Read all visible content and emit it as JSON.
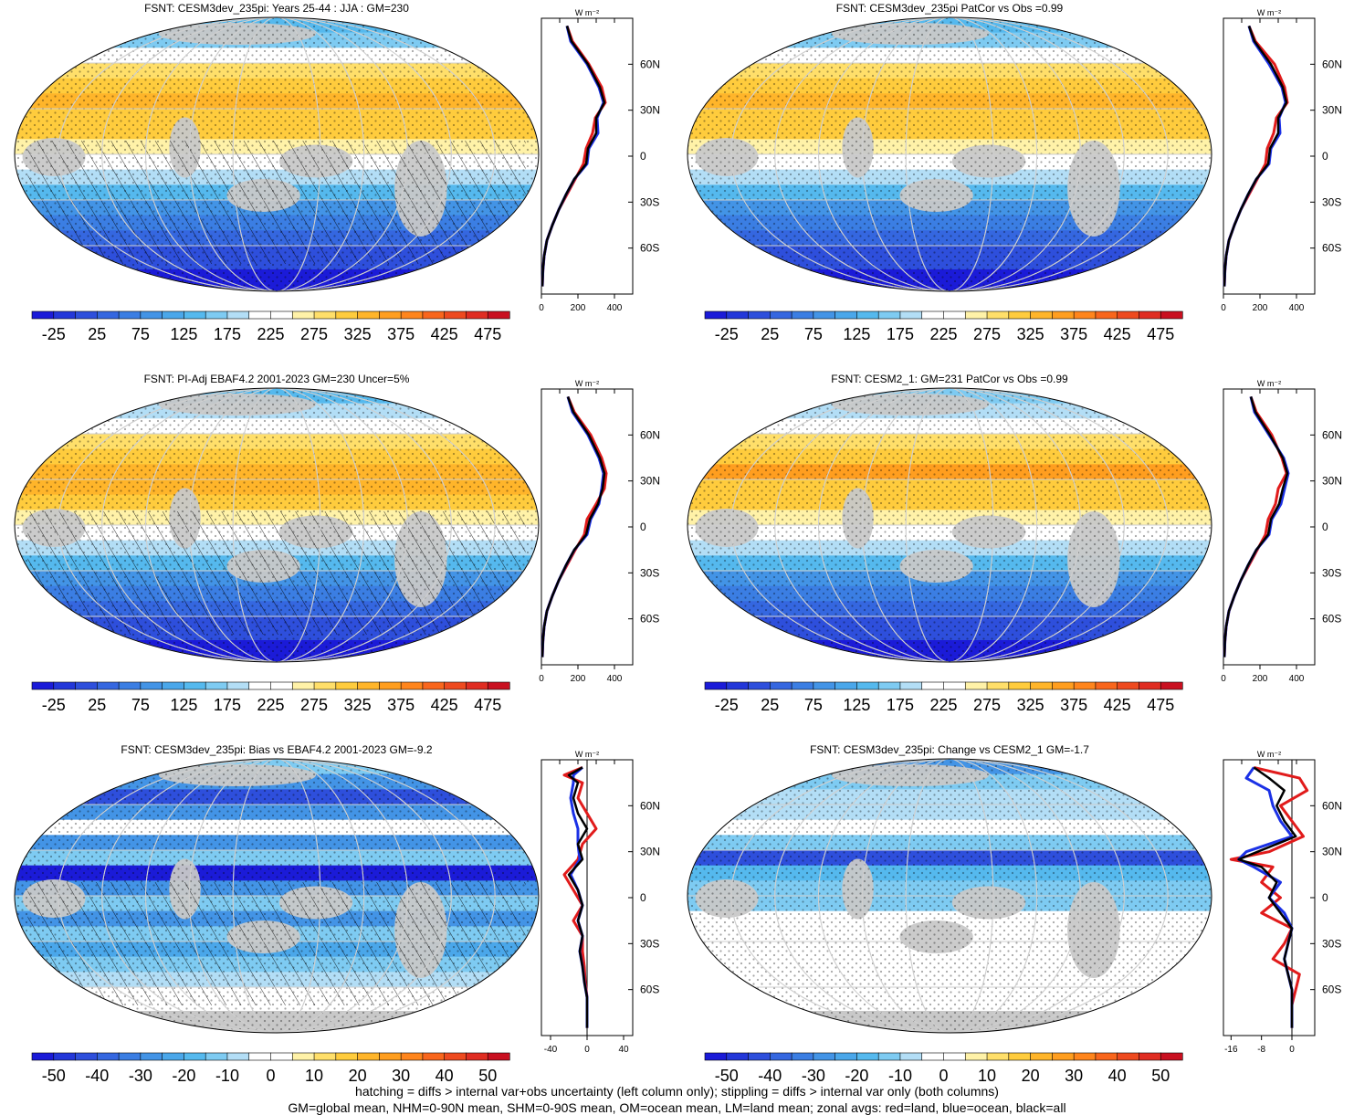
{
  "footer": {
    "line1": "hatching = diffs > internal var+obs uncertainty (left column only); stippling = diffs > internal var only (both columns)",
    "line2": "GM=global mean, NHM=0-90N mean, SHM=0-90S mean, OM=ocean mean, LM=land mean; zonal avgs: red=land, blue=ocean, black=all"
  },
  "lat_ticks": [
    "60N",
    "30N",
    "0",
    "30S",
    "60S"
  ],
  "unit_label": "W m⁻²",
  "colors": {
    "land": "#e11b1b",
    "ocean": "#1b31e6",
    "all": "#000000",
    "mask": "#c8c8c8"
  },
  "chart_data": [
    {
      "type": "heatmap",
      "title": "FSNT: CESM3dev_235pi: Years 25-44 : JJA : GM=230",
      "colorbar": {
        "ticks": [
          -25,
          25,
          75,
          125,
          175,
          225,
          275,
          325,
          375,
          425,
          475
        ],
        "vmin": -50,
        "vmax": 500,
        "levels": 22,
        "scheme": "abs"
      },
      "zonal": {
        "xticks": [
          0,
          200,
          400
        ],
        "xlim": [
          0,
          500
        ],
        "lat": [
          85,
          75,
          60,
          45,
          35,
          25,
          15,
          5,
          -5,
          -15,
          -25,
          -35,
          -45,
          -55,
          -65,
          -75,
          -85
        ],
        "all": [
          140,
          165,
          255,
          320,
          345,
          300,
          300,
          255,
          245,
          180,
          135,
          95,
          60,
          30,
          15,
          8,
          5
        ],
        "land": [
          140,
          170,
          260,
          330,
          350,
          295,
          280,
          245,
          230,
          185,
          140,
          95,
          60,
          30,
          15,
          8,
          5
        ],
        "ocean": [
          140,
          160,
          250,
          315,
          340,
          305,
          310,
          260,
          250,
          180,
          135,
          95,
          60,
          30,
          15,
          8,
          5
        ]
      }
    },
    {
      "type": "heatmap",
      "title": "FSNT: CESM3dev_235pi PatCor vs Obs =0.99",
      "colorbar": {
        "ticks": [
          -25,
          25,
          75,
          125,
          175,
          225,
          275,
          325,
          375,
          425,
          475
        ],
        "vmin": -50,
        "vmax": 500,
        "levels": 22,
        "scheme": "abs"
      },
      "zonal": {
        "xticks": [
          0,
          200,
          400
        ],
        "xlim": [
          0,
          500
        ],
        "lat": [
          85,
          75,
          60,
          45,
          35,
          25,
          15,
          5,
          -5,
          -15,
          -25,
          -35,
          -45,
          -55,
          -65,
          -75,
          -85
        ],
        "all": [
          140,
          170,
          260,
          325,
          345,
          300,
          300,
          255,
          245,
          180,
          135,
          95,
          60,
          30,
          15,
          8,
          5
        ],
        "land": [
          140,
          175,
          280,
          335,
          350,
          290,
          275,
          240,
          230,
          185,
          140,
          95,
          60,
          30,
          15,
          8,
          5
        ],
        "ocean": [
          140,
          165,
          250,
          320,
          340,
          305,
          310,
          260,
          250,
          180,
          135,
          95,
          60,
          30,
          15,
          8,
          5
        ]
      }
    },
    {
      "type": "heatmap",
      "title": "FSNT: PI-Adj EBAF4.2 2001-2023 GM=230 Uncer=5%",
      "colorbar": {
        "ticks": [
          -25,
          25,
          75,
          125,
          175,
          225,
          275,
          325,
          375,
          425,
          475
        ],
        "vmin": -50,
        "vmax": 500,
        "levels": 22,
        "scheme": "abs"
      },
      "zonal": {
        "xticks": [
          0,
          200,
          400
        ],
        "xlim": [
          0,
          500
        ],
        "lat": [
          85,
          75,
          60,
          45,
          35,
          25,
          15,
          5,
          -5,
          -15,
          -25,
          -35,
          -45,
          -55,
          -65,
          -75,
          -85
        ],
        "all": [
          145,
          175,
          260,
          320,
          345,
          335,
          310,
          265,
          245,
          180,
          135,
          95,
          60,
          30,
          15,
          8,
          5
        ],
        "land": [
          145,
          180,
          270,
          330,
          355,
          345,
          300,
          250,
          235,
          185,
          140,
          95,
          60,
          30,
          15,
          8,
          5
        ],
        "ocean": [
          145,
          170,
          255,
          315,
          340,
          330,
          315,
          270,
          250,
          180,
          135,
          95,
          60,
          30,
          15,
          8,
          5
        ]
      }
    },
    {
      "type": "heatmap",
      "title": "FSNT: CESM2_1: GM=231 PatCor vs Obs =0.99",
      "colorbar": {
        "ticks": [
          -25,
          25,
          75,
          125,
          175,
          225,
          275,
          325,
          375,
          425,
          475
        ],
        "vmin": -50,
        "vmax": 500,
        "levels": 22,
        "scheme": "abs"
      },
      "zonal": {
        "xticks": [
          0,
          200,
          400
        ],
        "xlim": [
          0,
          500
        ],
        "lat": [
          85,
          75,
          60,
          45,
          35,
          25,
          15,
          5,
          -5,
          -15,
          -25,
          -35,
          -45,
          -55,
          -65,
          -75,
          -85
        ],
        "all": [
          150,
          175,
          255,
          325,
          350,
          325,
          305,
          260,
          245,
          180,
          135,
          95,
          60,
          30,
          15,
          8,
          5
        ],
        "land": [
          150,
          180,
          265,
          320,
          345,
          300,
          285,
          245,
          230,
          185,
          140,
          95,
          60,
          30,
          15,
          8,
          5
        ],
        "ocean": [
          150,
          170,
          250,
          330,
          355,
          335,
          315,
          265,
          250,
          180,
          135,
          95,
          60,
          30,
          15,
          8,
          5
        ]
      }
    },
    {
      "type": "heatmap",
      "title": "FSNT: CESM3dev_235pi: Bias vs EBAF4.2 2001-2023 GM=-9.2",
      "colorbar": {
        "ticks": [
          -50,
          -40,
          -30,
          -20,
          -10,
          0,
          10,
          20,
          30,
          40,
          50
        ],
        "vmin": -55,
        "vmax": 55,
        "levels": 22,
        "scheme": "diff"
      },
      "zonal": {
        "xticks": [
          -40,
          0,
          40
        ],
        "xlim": [
          -50,
          50
        ],
        "lat": [
          85,
          80,
          75,
          65,
          55,
          45,
          35,
          25,
          15,
          5,
          -5,
          -15,
          -25,
          -35,
          -45,
          -55,
          -65,
          -75,
          -85
        ],
        "all": [
          -5,
          -20,
          -10,
          -15,
          -10,
          0,
          -10,
          -5,
          -20,
          -10,
          -5,
          -10,
          -5,
          -8,
          -5,
          -3,
          0,
          0,
          0
        ],
        "land": [
          -5,
          -25,
          -5,
          -10,
          0,
          10,
          -5,
          -10,
          -25,
          -15,
          -5,
          -15,
          -5,
          -5,
          -3,
          -2,
          0,
          0,
          0
        ],
        "ocean": [
          -5,
          -15,
          -15,
          -18,
          -15,
          -10,
          -10,
          -8,
          -18,
          -10,
          -5,
          -10,
          -5,
          -8,
          -5,
          -3,
          0,
          0,
          0
        ]
      }
    },
    {
      "type": "heatmap",
      "title": "FSNT: CESM3dev_235pi: Change vs CESM2_1 GM=-1.7",
      "colorbar": {
        "ticks": [
          -50,
          -40,
          -30,
          -20,
          -10,
          0,
          10,
          20,
          30,
          40,
          50
        ],
        "vmin": -55,
        "vmax": 55,
        "levels": 22,
        "scheme": "diff"
      },
      "zonal": {
        "xticks": [
          -16,
          -8,
          0
        ],
        "xlim": [
          -18,
          6
        ],
        "lat": [
          85,
          78,
          70,
          60,
          50,
          40,
          30,
          25,
          20,
          10,
          0,
          -10,
          -20,
          -30,
          -40,
          -50,
          -60,
          -70,
          -85
        ],
        "all": [
          -10,
          -6,
          -2,
          -4,
          -2,
          1,
          -9,
          -14,
          -8,
          -4,
          -6,
          -3,
          0,
          -1,
          -2,
          -1,
          0,
          0,
          0
        ],
        "land": [
          -10,
          2,
          4,
          -3,
          0,
          3,
          -6,
          -16,
          -5,
          -8,
          -3,
          -8,
          0,
          -2,
          -5,
          2,
          1,
          0,
          0
        ],
        "ocean": [
          -10,
          -12,
          -6,
          -5,
          -3,
          0,
          -12,
          -14,
          -10,
          -3,
          -6,
          -2,
          0,
          -1,
          -2,
          -1,
          0,
          0,
          0
        ]
      }
    }
  ]
}
